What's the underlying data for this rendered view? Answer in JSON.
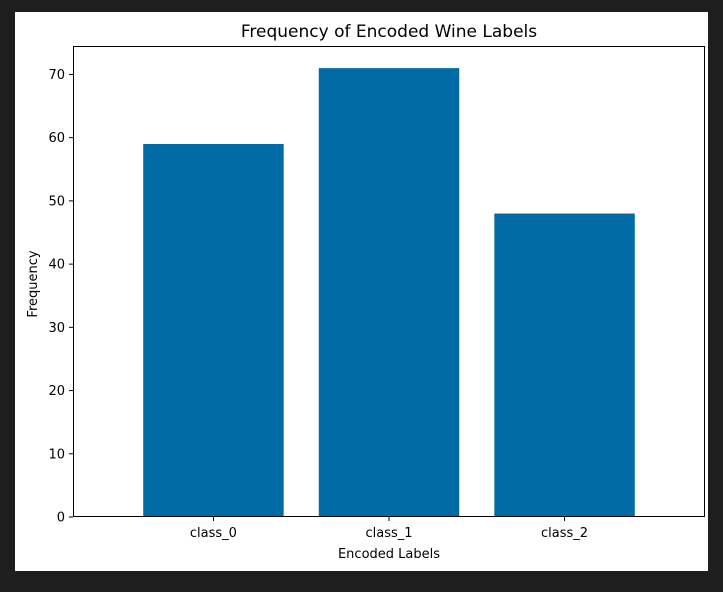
{
  "chart_data": {
    "type": "bar",
    "title": "Frequency of Encoded Wine Labels",
    "xlabel": "Encoded Labels",
    "ylabel": "Frequency",
    "categories": [
      "class_0",
      "class_1",
      "class_2"
    ],
    "values": [
      59,
      71,
      48
    ],
    "ylim": [
      0,
      74.5
    ],
    "yticks": [
      0,
      10,
      20,
      30,
      40,
      50,
      60,
      70
    ],
    "grid": false,
    "bar_color": "#006BA4"
  },
  "colors": {
    "background": "#1e1e1e",
    "figure": "#ffffff",
    "bar": "#006BA4"
  }
}
